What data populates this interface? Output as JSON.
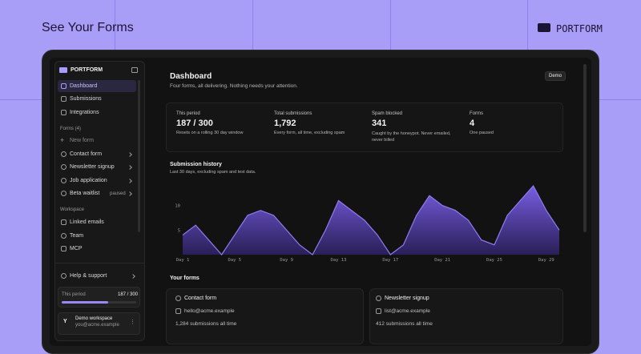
{
  "header": {
    "title": "See Your Forms",
    "brand": "PORTFORM"
  },
  "sidebar": {
    "brand": "PORTFORM",
    "nav": [
      "Dashboard",
      "Submissions",
      "Integrations"
    ],
    "forms_heading": "Forms (4)",
    "new_form": "New form",
    "forms": [
      {
        "name": "Contact form"
      },
      {
        "name": "Newsletter signup"
      },
      {
        "name": "Job application"
      },
      {
        "name": "Beta waitlist",
        "badge": "paused"
      }
    ],
    "workspace_heading": "Workspace",
    "workspace": [
      "Linked emails",
      "Team",
      "MCP"
    ],
    "help": "Help & support",
    "usage": {
      "label": "This period",
      "value": "187 / 300"
    },
    "account": {
      "initial": "Y",
      "name": "Demo workspace",
      "email": "you@acme.example"
    }
  },
  "main": {
    "title": "Dashboard",
    "subtitle": "Four forms, all delivering. Nothing needs your attention.",
    "badge": "Demo",
    "stats": [
      {
        "label": "This period",
        "value": "187 / 300",
        "note": "Resets on a rolling 30 day window"
      },
      {
        "label": "Total submissions",
        "value": "1,792",
        "note": "Every form, all time, excluding spam"
      },
      {
        "label": "Spam blocked",
        "value": "341",
        "note": "Caught by the honeypot. Never emailed, never billed"
      },
      {
        "label": "Forms",
        "value": "4",
        "note": "One paused"
      }
    ],
    "your_forms": "Your forms",
    "form_cards": [
      {
        "name": "Contact form",
        "email": "hello@acme.example",
        "count": "1,284 submissions all time"
      },
      {
        "name": "Newsletter signup",
        "email": "list@acme.example",
        "count": "412 submissions all time"
      }
    ]
  },
  "chart_data": {
    "type": "area",
    "title": "Submission history",
    "subtitle": "Last 30 days, excluding spam and test data.",
    "categories": [
      "Day 1",
      null,
      null,
      null,
      "Day 5",
      null,
      null,
      null,
      "Day 9",
      null,
      null,
      null,
      "Day 13",
      null,
      null,
      null,
      "Day 17",
      null,
      null,
      null,
      "Day 21",
      null,
      null,
      null,
      "Day 25",
      null,
      null,
      null,
      "Day 29",
      null
    ],
    "values": [
      4,
      6,
      3,
      0,
      4,
      8,
      9,
      8,
      5,
      2,
      0,
      5,
      11,
      9,
      7,
      4,
      0,
      2,
      8,
      12,
      10,
      9,
      7,
      3,
      2,
      8,
      11,
      14,
      9,
      5
    ],
    "color": "#8f7cf2",
    "ylim": [
      0,
      14
    ],
    "yticks": [
      5,
      10
    ],
    "grid": false
  }
}
